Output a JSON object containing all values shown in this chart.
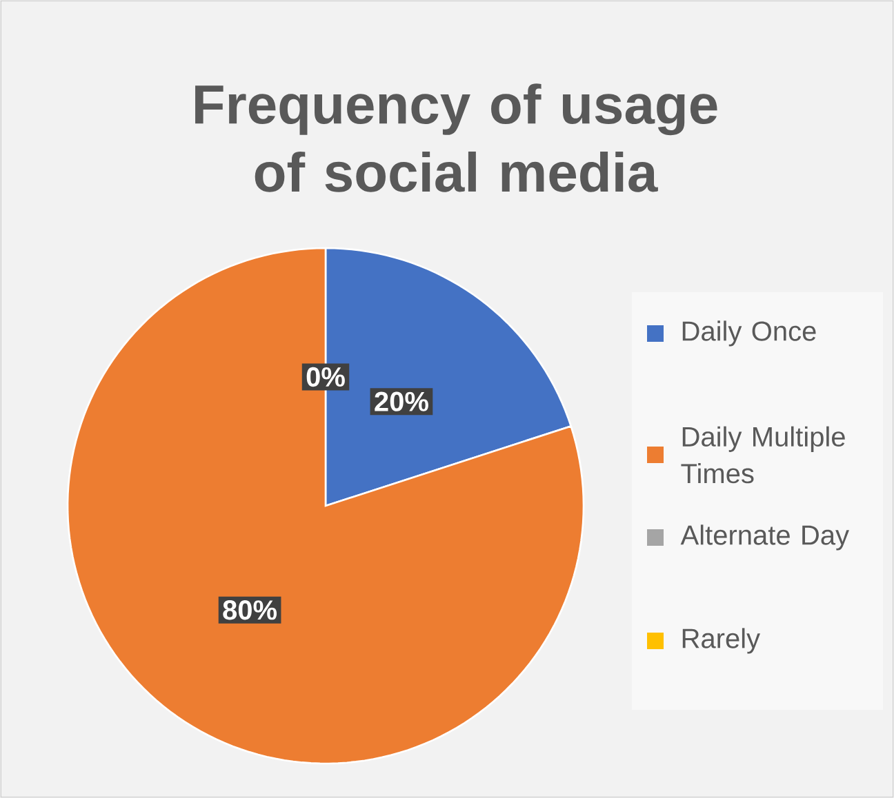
{
  "chart_data": {
    "type": "pie",
    "title": "Frequency of usage of social media",
    "categories": [
      "Daily Once",
      "Daily Multiple Times",
      "Alternate Day",
      "Rarely"
    ],
    "values": [
      20,
      80,
      0,
      0
    ],
    "colors": [
      "#4472c4",
      "#ed7d31",
      "#a5a5a5",
      "#ffc000"
    ],
    "value_labels": [
      "20%",
      "80%",
      "0%",
      null
    ],
    "legend": "right"
  }
}
